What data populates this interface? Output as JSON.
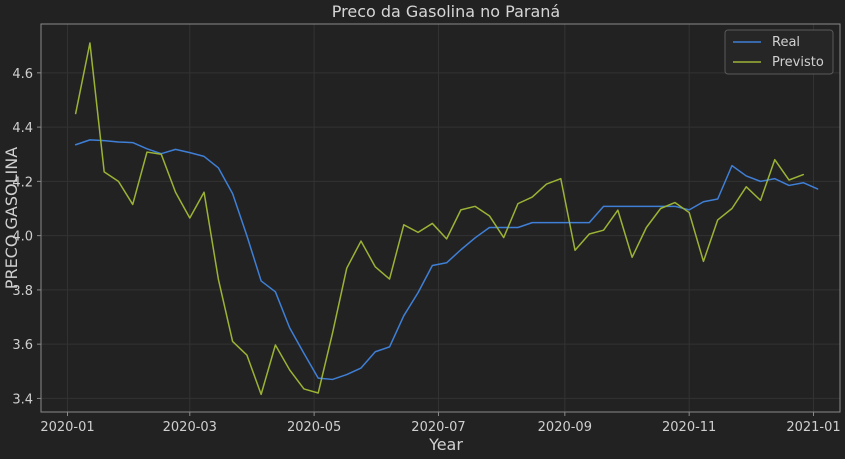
{
  "chart_data": {
    "type": "line",
    "title": "Preco da Gasolina no Paraná",
    "xlabel": "Year",
    "ylabel": "PRECO GASOLINA",
    "grid": true,
    "legend_position": "top-right",
    "background_color": "#222222",
    "x_ticks": [
      "2020-01",
      "2020-03",
      "2020-05",
      "2020-07",
      "2020-09",
      "2020-11",
      "2021-01"
    ],
    "y_ticks": [
      3.4,
      3.6,
      3.8,
      4.0,
      4.2,
      4.4,
      4.6
    ],
    "xlim": [
      "2019-12-19",
      "2021-01-14"
    ],
    "ylim": [
      3.35,
      4.78
    ],
    "series": [
      {
        "name": "Real",
        "color": "#3f7fd6",
        "points": [
          [
            "2020-01-05",
            4.335
          ],
          [
            "2020-01-12",
            4.353
          ],
          [
            "2020-01-19",
            4.35
          ],
          [
            "2020-01-26",
            4.345
          ],
          [
            "2020-02-02",
            4.343
          ],
          [
            "2020-02-09",
            4.32
          ],
          [
            "2020-02-16",
            4.302
          ],
          [
            "2020-02-23",
            4.318
          ],
          [
            "2020-03-01",
            4.306
          ],
          [
            "2020-03-08",
            4.292
          ],
          [
            "2020-03-15",
            4.25
          ],
          [
            "2020-03-22",
            4.155
          ],
          [
            "2020-03-29",
            4.0
          ],
          [
            "2020-04-05",
            3.833
          ],
          [
            "2020-04-12",
            3.793
          ],
          [
            "2020-04-19",
            3.66
          ],
          [
            "2020-04-26",
            3.566
          ],
          [
            "2020-05-03",
            3.475
          ],
          [
            "2020-05-10",
            3.47
          ],
          [
            "2020-05-17",
            3.488
          ],
          [
            "2020-05-24",
            3.512
          ],
          [
            "2020-05-31",
            3.572
          ],
          [
            "2020-06-07",
            3.59
          ],
          [
            "2020-06-14",
            3.705
          ],
          [
            "2020-06-21",
            3.79
          ],
          [
            "2020-06-28",
            3.89
          ],
          [
            "2020-07-05",
            3.9
          ],
          [
            "2020-07-12",
            3.948
          ],
          [
            "2020-07-19",
            3.992
          ],
          [
            "2020-07-26",
            4.03
          ],
          [
            "2020-08-02",
            4.03
          ],
          [
            "2020-08-09",
            4.03
          ],
          [
            "2020-08-16",
            4.048
          ],
          [
            "2020-08-23",
            4.048
          ],
          [
            "2020-08-30",
            4.048
          ],
          [
            "2020-09-06",
            4.048
          ],
          [
            "2020-09-13",
            4.048
          ],
          [
            "2020-09-20",
            4.108
          ],
          [
            "2020-09-27",
            4.108
          ],
          [
            "2020-10-04",
            4.108
          ],
          [
            "2020-10-11",
            4.108
          ],
          [
            "2020-10-18",
            4.108
          ],
          [
            "2020-10-25",
            4.108
          ],
          [
            "2020-11-01",
            4.095
          ],
          [
            "2020-11-08",
            4.125
          ],
          [
            "2020-11-15",
            4.135
          ],
          [
            "2020-11-22",
            4.258
          ],
          [
            "2020-11-29",
            4.22
          ],
          [
            "2020-12-06",
            4.2
          ],
          [
            "2020-12-13",
            4.21
          ],
          [
            "2020-12-20",
            4.185
          ],
          [
            "2020-12-27",
            4.195
          ],
          [
            "2021-01-03",
            4.172
          ]
        ]
      },
      {
        "name": "Previsto",
        "color": "#9bb335",
        "points": [
          [
            "2020-01-05",
            4.45
          ],
          [
            "2020-01-12",
            4.71
          ],
          [
            "2020-01-19",
            4.235
          ],
          [
            "2020-01-26",
            4.2
          ],
          [
            "2020-02-02",
            4.115
          ],
          [
            "2020-02-09",
            4.308
          ],
          [
            "2020-02-16",
            4.3
          ],
          [
            "2020-02-23",
            4.16
          ],
          [
            "2020-03-01",
            4.065
          ],
          [
            "2020-03-08",
            4.16
          ],
          [
            "2020-03-15",
            3.84
          ],
          [
            "2020-03-22",
            3.61
          ],
          [
            "2020-03-29",
            3.56
          ],
          [
            "2020-04-05",
            3.415
          ],
          [
            "2020-04-12",
            3.597
          ],
          [
            "2020-04-19",
            3.505
          ],
          [
            "2020-04-26",
            3.435
          ],
          [
            "2020-05-03",
            3.42
          ],
          [
            "2020-05-10",
            3.64
          ],
          [
            "2020-05-17",
            3.88
          ],
          [
            "2020-05-24",
            3.98
          ],
          [
            "2020-05-31",
            3.885
          ],
          [
            "2020-06-07",
            3.84
          ],
          [
            "2020-06-14",
            4.04
          ],
          [
            "2020-06-21",
            4.012
          ],
          [
            "2020-06-28",
            4.045
          ],
          [
            "2020-07-05",
            3.988
          ],
          [
            "2020-07-12",
            4.095
          ],
          [
            "2020-07-19",
            4.108
          ],
          [
            "2020-07-26",
            4.073
          ],
          [
            "2020-08-02",
            3.993
          ],
          [
            "2020-08-09",
            4.118
          ],
          [
            "2020-08-16",
            4.142
          ],
          [
            "2020-08-23",
            4.19
          ],
          [
            "2020-08-30",
            4.21
          ],
          [
            "2020-09-06",
            3.946
          ],
          [
            "2020-09-13",
            4.006
          ],
          [
            "2020-09-20",
            4.02
          ],
          [
            "2020-09-27",
            4.094
          ],
          [
            "2020-10-04",
            3.92
          ],
          [
            "2020-10-11",
            4.03
          ],
          [
            "2020-10-18",
            4.1
          ],
          [
            "2020-10-25",
            4.122
          ],
          [
            "2020-11-01",
            4.085
          ],
          [
            "2020-11-08",
            3.905
          ],
          [
            "2020-11-15",
            4.058
          ],
          [
            "2020-11-22",
            4.1
          ],
          [
            "2020-11-29",
            4.18
          ],
          [
            "2020-12-06",
            4.13
          ],
          [
            "2020-12-13",
            4.28
          ],
          [
            "2020-12-20",
            4.205
          ],
          [
            "2020-12-27",
            4.225
          ]
        ]
      }
    ]
  }
}
